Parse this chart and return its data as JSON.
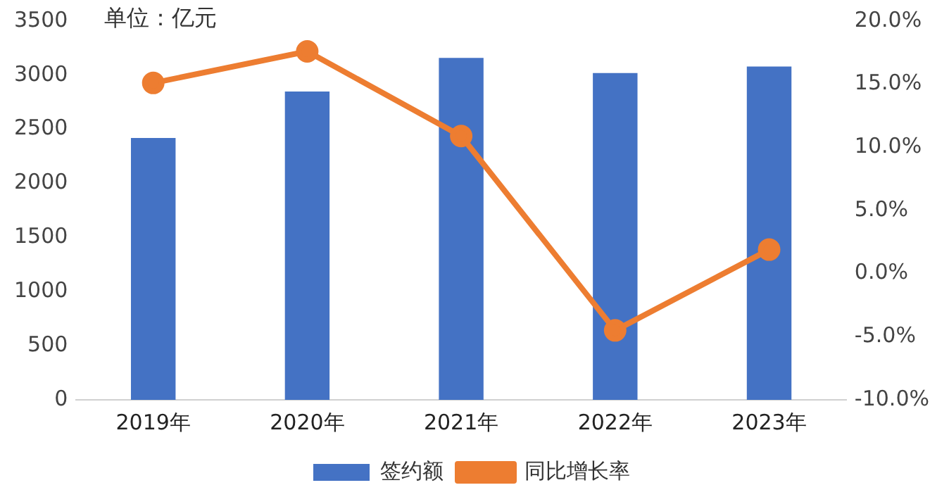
{
  "chart_data": {
    "type": "bar",
    "categories": [
      "2019年",
      "2020年",
      "2021年",
      "2022年",
      "2023年"
    ],
    "series": [
      {
        "name": "签约额",
        "color": "#4472c4",
        "values": [
          2420,
          2850,
          3160,
          3020,
          3080
        ]
      },
      {
        "name": "同比增长率",
        "type": "line",
        "axis": "y2",
        "color": "#ed7d31",
        "marker": "circle",
        "values": [
          15.1,
          17.6,
          10.9,
          -4.5,
          1.9
        ]
      }
    ],
    "ylim": [
      0,
      3500
    ],
    "yticks": [
      0,
      500,
      1000,
      1500,
      2000,
      2500,
      3000,
      3500
    ],
    "y2lim": [
      -10,
      20
    ],
    "y2ticks": [
      {
        "value": -10,
        "label": "-10.0%"
      },
      {
        "value": -5,
        "label": "-5.0%"
      },
      {
        "value": 0,
        "label": "0.0%"
      },
      {
        "value": 5,
        "label": "5.0%"
      },
      {
        "value": 10,
        "label": "10.0%"
      },
      {
        "value": 15,
        "label": "15.0%"
      },
      {
        "value": 20,
        "label": "20.0%"
      }
    ],
    "annotations": [
      "单位：亿元"
    ],
    "grid": false,
    "legend": "bottom"
  }
}
